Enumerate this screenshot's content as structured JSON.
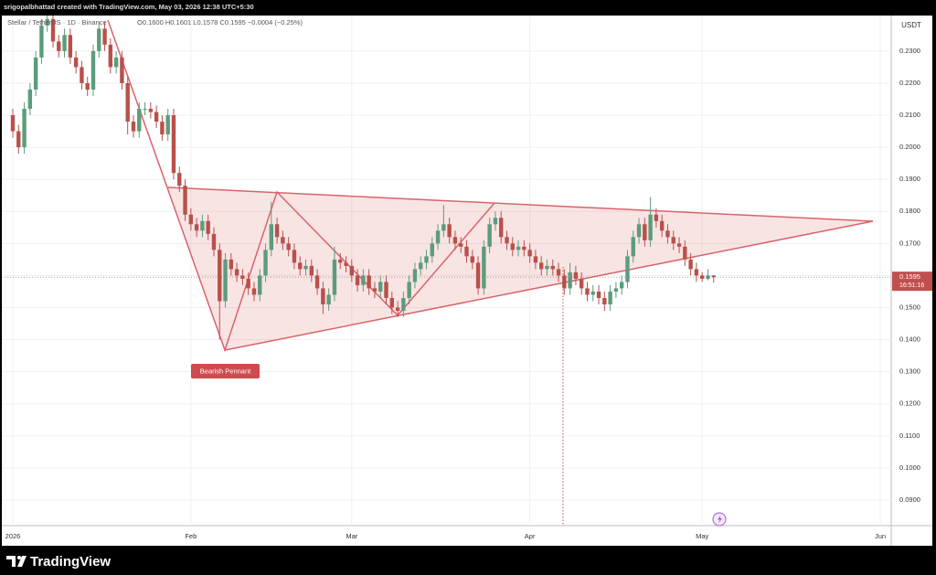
{
  "chart_data": {
    "type": "candlestick",
    "header": "srigopalbhattad created with TradingView.com, May 03, 2026 12:38 UTC+5:30",
    "symbol": "Stellar / TetherUS · 1D · Binance",
    "legend_text": "O0.1600 H0.1601 L0.1578 C0.1595 −0.0004 (−0.25%)",
    "currency": "USDT",
    "annotation": "Bearish Pennant",
    "brand": "TradingView",
    "up_color": "#5c9c7c",
    "down_color": "#b9504b",
    "grid": true,
    "price_tag": {
      "value": 0.1595,
      "label": "0.1595",
      "countdown": "16:51:16",
      "color": "#c0504d"
    },
    "xlim": [
      "2026-01-01",
      "2026-06-01"
    ],
    "xticks": [
      {
        "value": "2026-01-01",
        "label": "2026"
      },
      {
        "value": "2026-02-01",
        "label": "Feb"
      },
      {
        "value": "2026-03-01",
        "label": "Mar"
      },
      {
        "value": "2026-04-01",
        "label": "Apr"
      },
      {
        "value": "2026-05-01",
        "label": "May"
      },
      {
        "value": "2026-06-01",
        "label": "Jun"
      }
    ],
    "ylim": [
      0.082,
      0.2408
    ],
    "yticks": [
      {
        "value": 0.09,
        "label": "0.0900"
      },
      {
        "value": 0.1,
        "label": "0.1000"
      },
      {
        "value": 0.11,
        "label": "0.1100"
      },
      {
        "value": 0.12,
        "label": "0.1200"
      },
      {
        "value": 0.13,
        "label": "0.1300"
      },
      {
        "value": 0.14,
        "label": "0.1400"
      },
      {
        "value": 0.15,
        "label": "0.1500"
      },
      {
        "value": 0.16,
        "label": "0.1600"
      },
      {
        "value": 0.17,
        "label": "0.1700"
      },
      {
        "value": 0.18,
        "label": "0.1800"
      },
      {
        "value": 0.19,
        "label": "0.1900"
      },
      {
        "value": 0.2,
        "label": "0.2000"
      },
      {
        "value": 0.21,
        "label": "0.2100"
      },
      {
        "value": 0.22,
        "label": "0.2200"
      },
      {
        "value": 0.23,
        "label": "0.2300"
      }
    ],
    "x": [
      "2026-01-01",
      "2026-01-02",
      "2026-01-03",
      "2026-01-04",
      "2026-01-05",
      "2026-01-06",
      "2026-01-07",
      "2026-01-08",
      "2026-01-09",
      "2026-01-10",
      "2026-01-11",
      "2026-01-12",
      "2026-01-13",
      "2026-01-14",
      "2026-01-15",
      "2026-01-16",
      "2026-01-17",
      "2026-01-18",
      "2026-01-19",
      "2026-01-20",
      "2026-01-21",
      "2026-01-22",
      "2026-01-23",
      "2026-01-24",
      "2026-01-25",
      "2026-01-26",
      "2026-01-27",
      "2026-01-28",
      "2026-01-29",
      "2026-01-30",
      "2026-01-31",
      "2026-02-01",
      "2026-02-02",
      "2026-02-03",
      "2026-02-04",
      "2026-02-05",
      "2026-02-06",
      "2026-02-07",
      "2026-02-08",
      "2026-02-09",
      "2026-02-10",
      "2026-02-11",
      "2026-02-12",
      "2026-02-13",
      "2026-02-14",
      "2026-02-15",
      "2026-02-16",
      "2026-02-17",
      "2026-02-18",
      "2026-02-19",
      "2026-02-20",
      "2026-02-21",
      "2026-02-22",
      "2026-02-23",
      "2026-02-24",
      "2026-02-25",
      "2026-02-26",
      "2026-02-27",
      "2026-02-28",
      "2026-03-01",
      "2026-03-02",
      "2026-03-03",
      "2026-03-04",
      "2026-03-05",
      "2026-03-06",
      "2026-03-07",
      "2026-03-08",
      "2026-03-09",
      "2026-03-10",
      "2026-03-11",
      "2026-03-12",
      "2026-03-13",
      "2026-03-14",
      "2026-03-15",
      "2026-03-16",
      "2026-03-17",
      "2026-03-18",
      "2026-03-19",
      "2026-03-20",
      "2026-03-21",
      "2026-03-22",
      "2026-03-23",
      "2026-03-24",
      "2026-03-25",
      "2026-03-26",
      "2026-03-27",
      "2026-03-28",
      "2026-03-29",
      "2026-03-30",
      "2026-03-31",
      "2026-04-01",
      "2026-04-02",
      "2026-04-03",
      "2026-04-04",
      "2026-04-05",
      "2026-04-06",
      "2026-04-07",
      "2026-04-08",
      "2026-04-09",
      "2026-04-10",
      "2026-04-11",
      "2026-04-12",
      "2026-04-13",
      "2026-04-14",
      "2026-04-15",
      "2026-04-16",
      "2026-04-17",
      "2026-04-18",
      "2026-04-19",
      "2026-04-20",
      "2026-04-21",
      "2026-04-22",
      "2026-04-23",
      "2026-04-24",
      "2026-04-25",
      "2026-04-26",
      "2026-04-27",
      "2026-04-28",
      "2026-04-29",
      "2026-04-30",
      "2026-05-01",
      "2026-05-02",
      "2026-05-03"
    ],
    "open": [
      0.21,
      0.205,
      0.2,
      0.212,
      0.218,
      0.228,
      0.238,
      0.24,
      0.233,
      0.23,
      0.235,
      0.228,
      0.225,
      0.22,
      0.218,
      0.23,
      0.237,
      0.232,
      0.225,
      0.228,
      0.22,
      0.208,
      0.205,
      0.212,
      0.212,
      0.211,
      0.208,
      0.204,
      0.21,
      0.192,
      0.188,
      0.179,
      0.176,
      0.174,
      0.177,
      0.173,
      0.168,
      0.152,
      0.165,
      0.162,
      0.16,
      0.159,
      0.156,
      0.154,
      0.16,
      0.168,
      0.176,
      0.172,
      0.17,
      0.168,
      0.164,
      0.162,
      0.163,
      0.16,
      0.156,
      0.151,
      0.154,
      0.165,
      0.164,
      0.163,
      0.16,
      0.157,
      0.16,
      0.156,
      0.155,
      0.158,
      0.153,
      0.15,
      0.149,
      0.153,
      0.158,
      0.162,
      0.164,
      0.166,
      0.17,
      0.174,
      0.176,
      0.172,
      0.17,
      0.169,
      0.166,
      0.164,
      0.156,
      0.169,
      0.176,
      0.178,
      0.172,
      0.17,
      0.168,
      0.169,
      0.168,
      0.166,
      0.164,
      0.162,
      0.163,
      0.162,
      0.16,
      0.156,
      0.161,
      0.159,
      0.156,
      0.154,
      0.155,
      0.153,
      0.151,
      0.155,
      0.156,
      0.158,
      0.166,
      0.172,
      0.176,
      0.171,
      0.179,
      0.177,
      0.174,
      0.172,
      0.17,
      0.169,
      0.165,
      0.162,
      0.16,
      0.159,
      0.16
    ],
    "high": [
      0.212,
      0.207,
      0.214,
      0.22,
      0.23,
      0.24,
      0.242,
      0.242,
      0.235,
      0.237,
      0.237,
      0.23,
      0.227,
      0.222,
      0.232,
      0.239,
      0.239,
      0.234,
      0.23,
      0.23,
      0.222,
      0.21,
      0.214,
      0.214,
      0.214,
      0.213,
      0.21,
      0.212,
      0.212,
      0.194,
      0.19,
      0.181,
      0.178,
      0.179,
      0.179,
      0.175,
      0.17,
      0.167,
      0.167,
      0.164,
      0.162,
      0.161,
      0.158,
      0.162,
      0.17,
      0.183,
      0.178,
      0.174,
      0.172,
      0.17,
      0.166,
      0.165,
      0.165,
      0.162,
      0.158,
      0.156,
      0.169,
      0.167,
      0.166,
      0.165,
      0.162,
      0.162,
      0.162,
      0.158,
      0.16,
      0.16,
      0.155,
      0.152,
      0.155,
      0.16,
      0.164,
      0.166,
      0.168,
      0.172,
      0.176,
      0.182,
      0.178,
      0.174,
      0.172,
      0.171,
      0.168,
      0.166,
      0.171,
      0.178,
      0.18,
      0.18,
      0.174,
      0.172,
      0.171,
      0.171,
      0.17,
      0.168,
      0.166,
      0.165,
      0.165,
      0.164,
      0.162,
      0.164,
      0.163,
      0.161,
      0.158,
      0.157,
      0.157,
      0.155,
      0.157,
      0.158,
      0.16,
      0.168,
      0.174,
      0.178,
      0.178,
      0.1845,
      0.181,
      0.179,
      0.176,
      0.174,
      0.172,
      0.171,
      0.167,
      0.164,
      0.161,
      0.162,
      0.1601
    ],
    "low": [
      0.203,
      0.198,
      0.198,
      0.21,
      0.216,
      0.226,
      0.236,
      0.231,
      0.228,
      0.228,
      0.226,
      0.223,
      0.218,
      0.216,
      0.216,
      0.228,
      0.23,
      0.223,
      0.223,
      0.218,
      0.204,
      0.203,
      0.203,
      0.21,
      0.209,
      0.206,
      0.202,
      0.202,
      0.19,
      0.186,
      0.177,
      0.174,
      0.172,
      0.172,
      0.171,
      0.166,
      0.14,
      0.15,
      0.16,
      0.158,
      0.157,
      0.154,
      0.152,
      0.152,
      0.158,
      0.166,
      0.17,
      0.168,
      0.166,
      0.162,
      0.16,
      0.16,
      0.158,
      0.154,
      0.148,
      0.149,
      0.152,
      0.162,
      0.161,
      0.158,
      0.155,
      0.155,
      0.154,
      0.153,
      0.153,
      0.151,
      0.148,
      0.147,
      0.147,
      0.151,
      0.156,
      0.16,
      0.162,
      0.164,
      0.168,
      0.172,
      0.17,
      0.168,
      0.167,
      0.164,
      0.162,
      0.154,
      0.154,
      0.167,
      0.174,
      0.17,
      0.168,
      0.166,
      0.166,
      0.166,
      0.164,
      0.162,
      0.16,
      0.16,
      0.16,
      0.158,
      0.154,
      0.154,
      0.157,
      0.154,
      0.152,
      0.152,
      0.151,
      0.149,
      0.149,
      0.153,
      0.154,
      0.156,
      0.164,
      0.17,
      0.169,
      0.169,
      0.175,
      0.172,
      0.17,
      0.168,
      0.167,
      0.163,
      0.16,
      0.158,
      0.158,
      0.1585,
      0.1578
    ],
    "close": [
      0.205,
      0.2,
      0.212,
      0.218,
      0.228,
      0.238,
      0.24,
      0.233,
      0.23,
      0.235,
      0.228,
      0.225,
      0.22,
      0.218,
      0.23,
      0.237,
      0.232,
      0.225,
      0.228,
      0.22,
      0.208,
      0.205,
      0.212,
      0.212,
      0.211,
      0.208,
      0.204,
      0.21,
      0.192,
      0.188,
      0.179,
      0.176,
      0.174,
      0.177,
      0.173,
      0.168,
      0.152,
      0.165,
      0.162,
      0.16,
      0.159,
      0.156,
      0.154,
      0.16,
      0.168,
      0.176,
      0.172,
      0.17,
      0.168,
      0.164,
      0.162,
      0.163,
      0.16,
      0.156,
      0.151,
      0.154,
      0.165,
      0.164,
      0.163,
      0.16,
      0.157,
      0.16,
      0.156,
      0.155,
      0.158,
      0.153,
      0.15,
      0.149,
      0.153,
      0.158,
      0.162,
      0.164,
      0.166,
      0.17,
      0.174,
      0.176,
      0.172,
      0.17,
      0.169,
      0.166,
      0.164,
      0.156,
      0.169,
      0.176,
      0.178,
      0.172,
      0.17,
      0.168,
      0.169,
      0.168,
      0.166,
      0.164,
      0.162,
      0.163,
      0.162,
      0.16,
      0.156,
      0.161,
      0.159,
      0.156,
      0.154,
      0.155,
      0.153,
      0.151,
      0.155,
      0.156,
      0.158,
      0.166,
      0.172,
      0.176,
      0.171,
      0.179,
      0.177,
      0.174,
      0.172,
      0.17,
      0.169,
      0.165,
      0.162,
      0.16,
      0.159,
      0.16,
      0.1595
    ]
  }
}
